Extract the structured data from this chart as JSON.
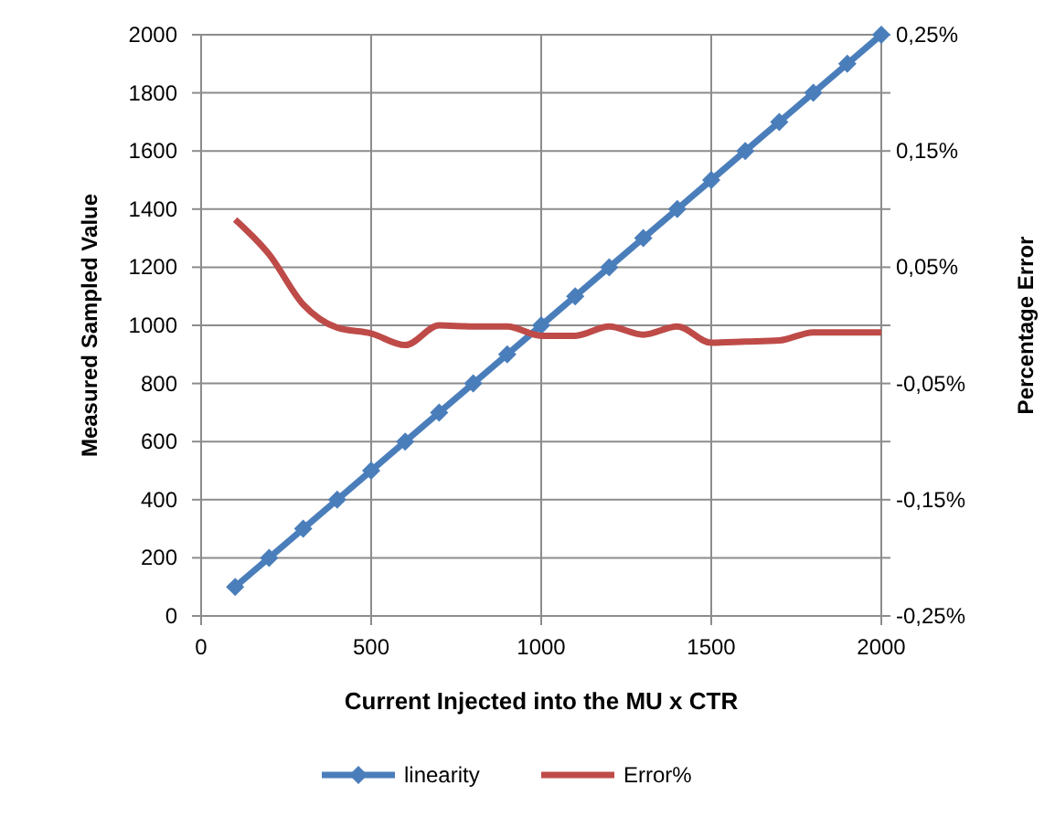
{
  "chart_data": {
    "type": "line",
    "xlabel": "Current Injected into the MU x CTR",
    "ylabel": "Measured Sampled Value",
    "y2label": "Percentage Error",
    "x": [
      100,
      200,
      300,
      400,
      500,
      600,
      700,
      800,
      900,
      1000,
      1100,
      1200,
      1300,
      1400,
      1500,
      1600,
      1700,
      1800,
      1900,
      2000
    ],
    "series": [
      {
        "name": "linearity",
        "color": "#4a7ebb",
        "marker": "diamond",
        "values": [
          100,
          200,
          300,
          400,
          500,
          600,
          700,
          800,
          900,
          1000,
          1100,
          1200,
          1300,
          1400,
          1500,
          1600,
          1700,
          1800,
          1900,
          2000
        ]
      },
      {
        "name": "Error%",
        "color": "#be4b48",
        "axis": "y2",
        "marker": "none",
        "values": [
          0.091,
          0.061,
          0.018,
          -0.002,
          -0.007,
          -0.017,
          0,
          -0.001,
          -0.001,
          -0.009,
          -0.009,
          -0.001,
          -0.008,
          -0.001,
          -0.015,
          -0.014,
          -0.013,
          -0.006,
          -0.006,
          -0.006
        ]
      }
    ],
    "xlim": [
      0,
      2000
    ],
    "xticks": [
      0,
      500,
      1000,
      1500,
      2000
    ],
    "ylim": [
      0,
      2000
    ],
    "yticks": [
      0,
      200,
      400,
      600,
      800,
      1000,
      1200,
      1400,
      1600,
      1800,
      2000
    ],
    "y2lim": [
      -0.25,
      0.25
    ],
    "y2ticks": [
      {
        "value": -0.25,
        "label": "-0,25%"
      },
      {
        "value": -0.2,
        "label": null
      },
      {
        "value": -0.15,
        "label": "-0,15%"
      },
      {
        "value": -0.1,
        "label": null
      },
      {
        "value": -0.05,
        "label": "-0,05%"
      },
      {
        "value": 0,
        "label": null
      },
      {
        "value": 0.05,
        "label": "0,05%"
      },
      {
        "value": 0.1,
        "label": null
      },
      {
        "value": 0.15,
        "label": "0,15%"
      },
      {
        "value": 0.2,
        "label": null
      },
      {
        "value": 0.25,
        "label": "0,25%"
      }
    ],
    "grid": true,
    "legend": "bottom",
    "line_style": "solid"
  }
}
